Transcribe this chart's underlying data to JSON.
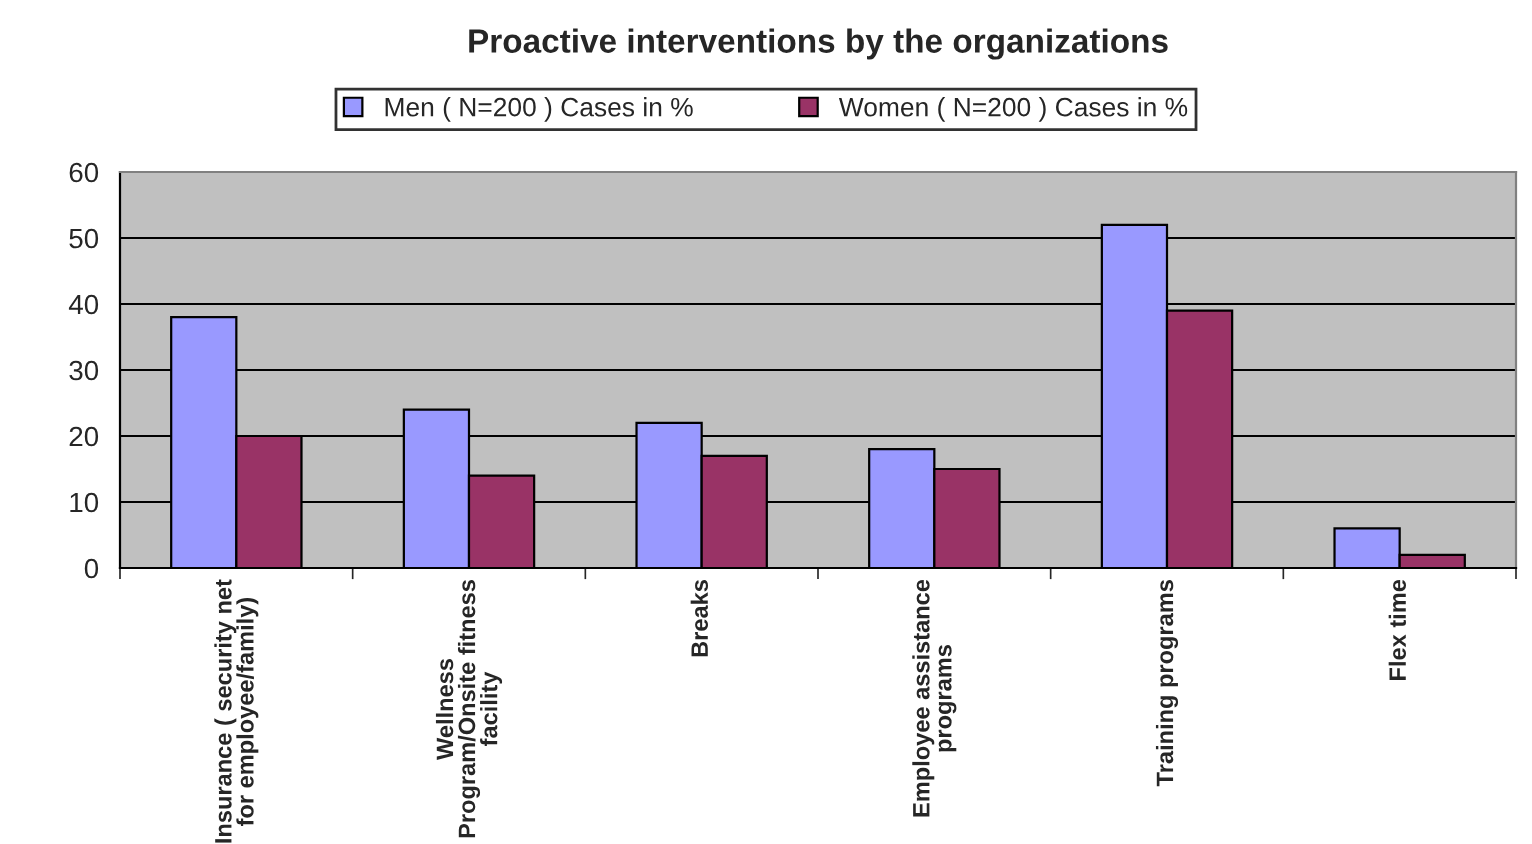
{
  "chart_data": {
    "type": "bar",
    "title": "Proactive interventions by the organizations",
    "categories": [
      "Insurance ( security net\nfor employee/family)",
      "Wellness\nProgram/Onsite fitness\nfacility",
      "Breaks",
      "Employee assistance\nprograms",
      "Training programs",
      "Flex time"
    ],
    "series": [
      {
        "name": "Men ( N=200 ) Cases in %",
        "color": "#9999ff",
        "values": [
          38,
          24,
          22,
          18,
          52,
          6
        ]
      },
      {
        "name": "Women ( N=200 ) Cases in %",
        "color": "#993366",
        "values": [
          20,
          14,
          17,
          15,
          39,
          2
        ]
      }
    ],
    "ylim": [
      0,
      60
    ],
    "yticks": [
      0,
      10,
      20,
      30,
      40,
      50,
      60
    ],
    "grid": "y",
    "legend": "top"
  }
}
